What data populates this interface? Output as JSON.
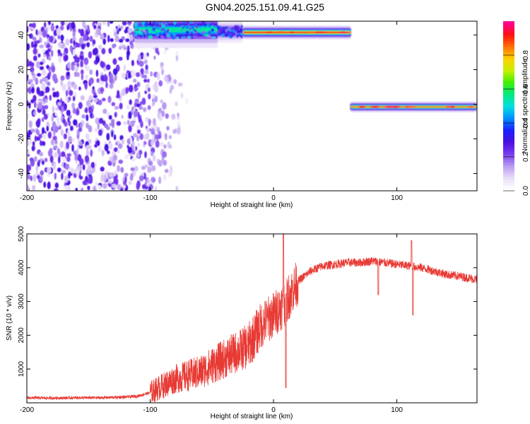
{
  "title": "GN04.2025.151.09.41.G25",
  "colors": {
    "snr_line": "#e83a34",
    "colormap": [
      "#ffffff",
      "#e8dcf8",
      "#b79af0",
      "#7a3cf0",
      "#4a10e0",
      "#1a20ff",
      "#0090ff",
      "#00e0e0",
      "#00e880",
      "#40f000",
      "#c8f000",
      "#ffd000",
      "#ff7000",
      "#ff1010",
      "#ff0090"
    ]
  },
  "chart_data": [
    {
      "type": "heatmap",
      "xlabel": "Height of straight line (km)",
      "ylabel": "Frequency (Hz)",
      "xlim": [
        -200,
        165
      ],
      "ylim": [
        -50,
        48
      ],
      "x_ticks": [
        -200,
        -100,
        0,
        100
      ],
      "y_ticks": [
        -40,
        -20,
        0,
        20,
        40
      ],
      "colorbar": {
        "label": "Normalized spectral amplitude",
        "range": [
          0,
          1
        ],
        "ticks": [
          "0.0",
          "0.2",
          "0.4",
          "0.6",
          "0.8"
        ],
        "tick_values": [
          0,
          0.2,
          0.4,
          0.6,
          0.8
        ]
      },
      "noise_region": {
        "x_range": [
          -200,
          -95
        ],
        "y_range": [
          -50,
          48
        ],
        "amplitude": [
          0.05,
          0.3
        ]
      },
      "tracks": [
        {
          "x_start": -113,
          "x_end": -45,
          "frequency": 43,
          "freq_spread": 4,
          "peak_amplitude": 0.55
        },
        {
          "x_start": -45,
          "x_end": -25,
          "frequency": 42,
          "freq_spread": 2.5,
          "peak_amplitude": 0.45
        },
        {
          "x_start": -25,
          "x_end": 63,
          "frequency": 41.5,
          "freq_spread": 1.5,
          "peak_amplitude": 0.9
        },
        {
          "x_start": 62,
          "x_end": 165,
          "frequency": -1.5,
          "freq_spread": 1.2,
          "peak_amplitude": 0.85
        }
      ],
      "grid": false
    },
    {
      "type": "line",
      "xlabel": "Height of straight line (km)",
      "ylabel": "SNR (10 * v/v)",
      "xlim": [
        -200,
        165
      ],
      "ylim": [
        0,
        5000
      ],
      "x_ticks": [
        -200,
        -100,
        0,
        100
      ],
      "y_ticks": [
        1000,
        2000,
        3000,
        4000,
        5000
      ],
      "series": [
        {
          "x": [
            -200,
            -180,
            -160,
            -140,
            -120,
            -110,
            -100,
            -90,
            -80,
            -70,
            -60,
            -50,
            -40,
            -30,
            -20,
            -10,
            0,
            10,
            20,
            30,
            40,
            50,
            60,
            70,
            80,
            90,
            100,
            110,
            120,
            130,
            140,
            150,
            165
          ],
          "values": [
            150,
            140,
            150,
            150,
            170,
            200,
            300,
            500,
            700,
            800,
            900,
            1100,
            1300,
            1500,
            1700,
            2300,
            2600,
            3000,
            3600,
            3900,
            4050,
            4100,
            4150,
            4150,
            4200,
            4150,
            4100,
            4050,
            4000,
            3900,
            3800,
            3750,
            3650
          ]
        }
      ],
      "annotations": [
        {
          "x": 8,
          "value": 5000,
          "label": "spike"
        },
        {
          "x": 10,
          "value": 450,
          "label": "dip"
        },
        {
          "x": 85,
          "value": 4700,
          "label": "spike"
        },
        {
          "x": 85,
          "value": 3200,
          "label": "dip"
        },
        {
          "x": 112,
          "value": 4800,
          "label": "spike"
        },
        {
          "x": 113,
          "value": 2600,
          "label": "dip"
        }
      ],
      "grid": false
    }
  ]
}
